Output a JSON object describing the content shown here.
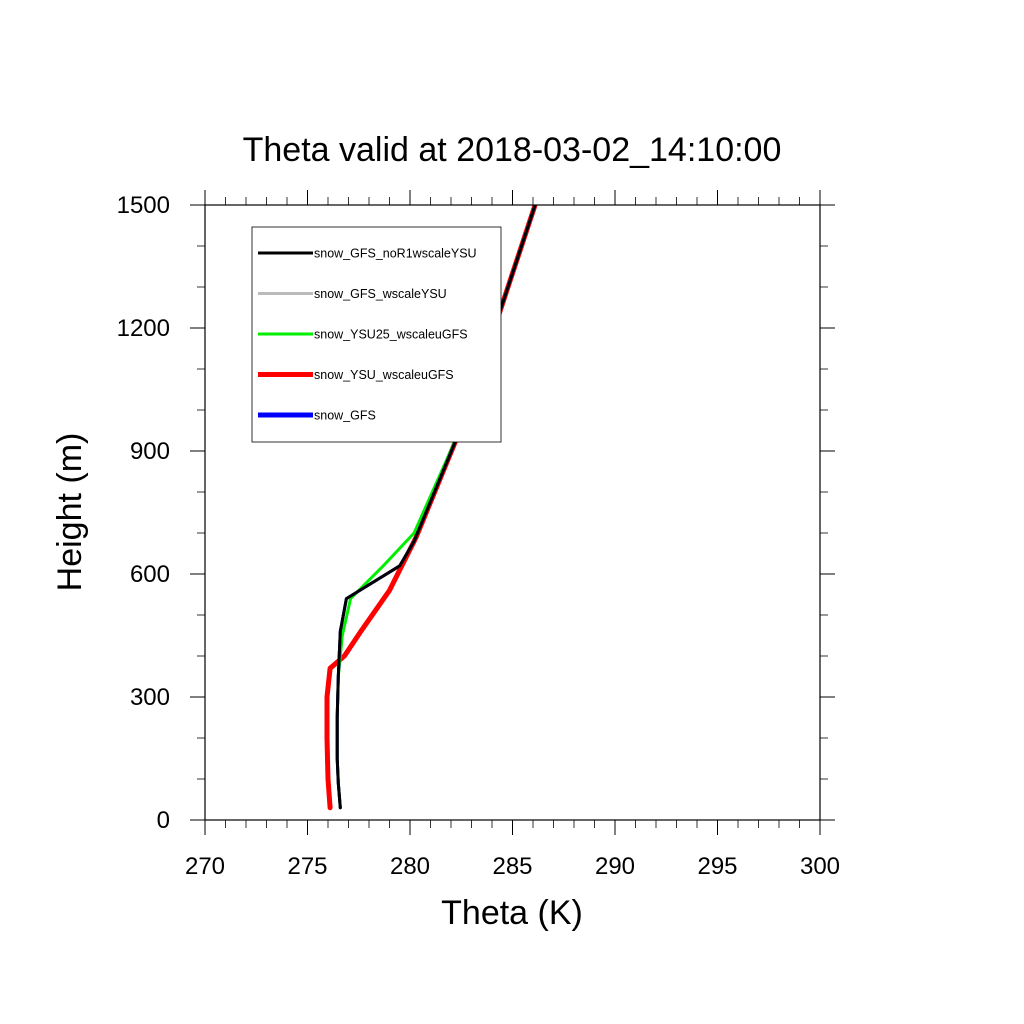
{
  "chart_data": {
    "type": "line",
    "title": "Theta valid at 2018-03-02_14:10:00",
    "xlabel": "Theta (K)",
    "ylabel": "Height (m)",
    "xlim": [
      270,
      300
    ],
    "ylim": [
      0,
      1500
    ],
    "xticks": [
      270,
      275,
      280,
      285,
      290,
      295,
      300
    ],
    "yticks": [
      0,
      300,
      600,
      900,
      1200,
      1500
    ],
    "grid": false,
    "legend_position": "top-left",
    "series": [
      {
        "name": "snow_GFS_noR1wscaleYSU",
        "color": "#000000",
        "x": [
          276.6,
          276.5,
          276.45,
          276.45,
          276.5,
          276.6,
          276.9,
          279.5,
          280.2,
          282.6,
          286.1
        ],
        "y": [
          30,
          90,
          150,
          250,
          350,
          460,
          540,
          620,
          680,
          970,
          1500
        ]
      },
      {
        "name": "snow_GFS_wscaleYSU",
        "color": "#bbbbbb",
        "x": [
          276.6,
          276.5,
          276.45,
          276.45,
          276.5,
          276.6,
          276.9,
          279.5,
          280.2,
          282.6,
          286.1
        ],
        "y": [
          30,
          90,
          150,
          250,
          350,
          460,
          540,
          620,
          680,
          970,
          1500
        ]
      },
      {
        "name": "snow_YSU25_wscaleuGFS",
        "color": "#00ee00",
        "x": [
          276.6,
          276.5,
          276.45,
          276.45,
          276.5,
          276.7,
          277.1,
          278.7,
          280.2,
          282.6,
          286.1
        ],
        "y": [
          30,
          90,
          150,
          250,
          350,
          450,
          540,
          620,
          700,
          970,
          1500
        ]
      },
      {
        "name": "snow_YSU_wscaleuGFS",
        "color": "#ff0000",
        "x": [
          276.1,
          276.0,
          275.95,
          275.95,
          276.1,
          276.8,
          277.6,
          279.0,
          280.3,
          282.6,
          286.1
        ],
        "y": [
          30,
          100,
          200,
          300,
          370,
          400,
          460,
          560,
          690,
          970,
          1500
        ]
      },
      {
        "name": "snow_GFS",
        "color": "#0000ff",
        "x": [
          276.6,
          276.5,
          276.45,
          276.45,
          276.5,
          276.6,
          276.9,
          279.5,
          280.2,
          282.6,
          286.1
        ],
        "y": [
          30,
          90,
          150,
          250,
          350,
          460,
          540,
          620,
          680,
          970,
          1500
        ]
      }
    ]
  }
}
